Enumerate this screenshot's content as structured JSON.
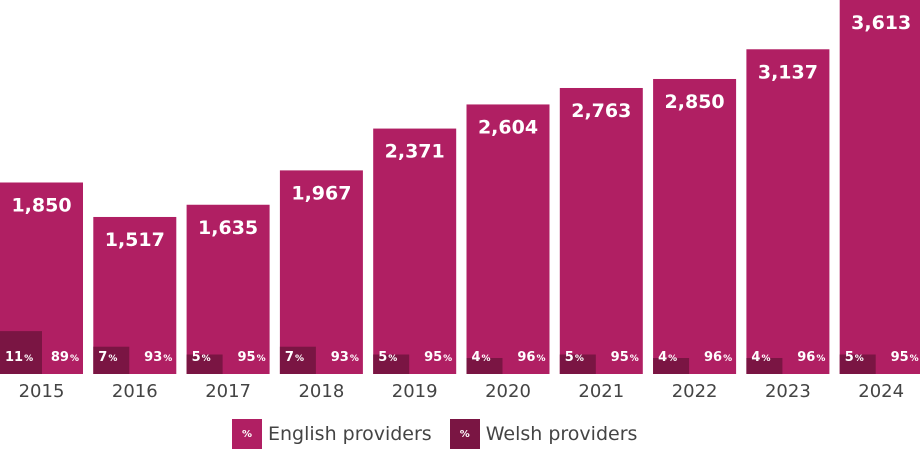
{
  "colors": {
    "english": "#b01f63",
    "welsh": "#7a1543"
  },
  "chart_data": {
    "type": "bar",
    "categories": [
      "2015",
      "2016",
      "2017",
      "2018",
      "2019",
      "2020",
      "2021",
      "2022",
      "2023",
      "2024"
    ],
    "totals": [
      1850,
      1517,
      1635,
      1967,
      2371,
      2604,
      2763,
      2850,
      3137,
      3613
    ],
    "total_labels": [
      "1,850",
      "1,517",
      "1,635",
      "1,967",
      "2,371",
      "2,604",
      "2,763",
      "2,850",
      "3,137",
      "3,613"
    ],
    "series": [
      {
        "name": "English providers",
        "values": [
          89,
          93,
          95,
          93,
          95,
          96,
          95,
          96,
          96,
          95
        ]
      },
      {
        "name": "Welsh providers",
        "values": [
          11,
          7,
          5,
          7,
          5,
          4,
          5,
          4,
          4,
          5
        ]
      }
    ],
    "value_unit": "%",
    "ylim": [
      0,
      3613
    ]
  },
  "legend": {
    "swatch_symbol": "%",
    "english_label": "English providers",
    "welsh_label": "Welsh providers"
  }
}
